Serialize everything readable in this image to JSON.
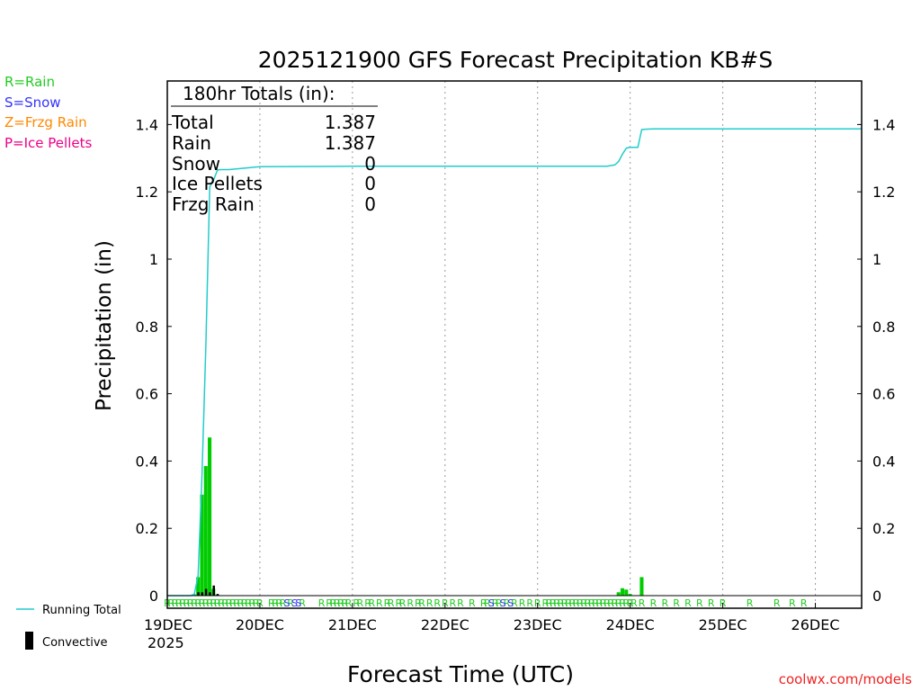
{
  "chart_data": {
    "type": "bar",
    "title": "2025121900 GFS Forecast Precipitation KB#S",
    "xlabel": "Forecast Time (UTC)",
    "ylabel": "Precipitation (in)",
    "ylim": [
      0,
      1.5
    ],
    "xlim_hours": [
      0,
      180
    ],
    "y_ticks": [
      "0",
      "0.2",
      "0.4",
      "0.6",
      "0.8",
      "1",
      "1.2",
      "1.4"
    ],
    "x_ticks": [
      {
        "hour": 0,
        "label": "19DEC",
        "sublabel": "2025"
      },
      {
        "hour": 24,
        "label": "20DEC"
      },
      {
        "hour": 48,
        "label": "21DEC"
      },
      {
        "hour": 72,
        "label": "22DEC"
      },
      {
        "hour": 96,
        "label": "23DEC"
      },
      {
        "hour": 120,
        "label": "24DEC"
      },
      {
        "hour": 144,
        "label": "25DEC"
      },
      {
        "hour": 168,
        "label": "26DEC"
      }
    ],
    "totals_box": {
      "header": "180hr Totals (in):",
      "rows": [
        {
          "label": "Total",
          "value": "1.387"
        },
        {
          "label": "Rain",
          "value": "1.387"
        },
        {
          "label": "Snow",
          "value": "0"
        },
        {
          "label": "Ice Pellets",
          "value": "0"
        },
        {
          "label": "Frzg Rain",
          "value": "0"
        }
      ]
    },
    "type_legend": [
      {
        "text": "R=Rain",
        "color": "#22cc22"
      },
      {
        "text": "S=Snow",
        "color": "#3333ff"
      },
      {
        "text": "Z=Frzg Rain",
        "color": "#ff8800"
      },
      {
        "text": "P=Ice Pellets",
        "color": "#ee0088"
      }
    ],
    "bottom_legend": {
      "running_total_label": "Running Total",
      "convective_label": "Convective"
    },
    "credit": "coolwx.com/models",
    "series": [
      {
        "name": "Precipitation",
        "hours": [
          7,
          8,
          9,
          10,
          11,
          12,
          13,
          14,
          117,
          118,
          119,
          120,
          123
        ],
        "values": [
          0.004,
          0.055,
          0.3,
          0.385,
          0.47,
          0.02,
          0.003,
          0.001,
          0.01,
          0.022,
          0.018,
          0.005,
          0.055
        ]
      },
      {
        "name": "Convective",
        "hours": [
          8,
          9,
          10,
          11,
          12,
          13
        ],
        "values": [
          0.01,
          0.01,
          0.02,
          0.01,
          0.03,
          0.005
        ]
      },
      {
        "name": "Running Total",
        "hours": [
          0,
          6,
          7,
          8,
          9,
          10,
          11,
          12,
          13,
          14,
          16,
          24,
          48,
          72,
          96,
          114,
          116,
          117,
          118,
          119,
          120,
          122,
          123,
          124,
          126,
          180
        ],
        "values": [
          0,
          0,
          0.004,
          0.06,
          0.36,
          0.745,
          1.215,
          1.235,
          1.265,
          1.266,
          1.266,
          1.275,
          1.276,
          1.276,
          1.276,
          1.276,
          1.28,
          1.29,
          1.312,
          1.33,
          1.332,
          1.332,
          1.385,
          1.386,
          1.387,
          1.387
        ]
      }
    ],
    "ptype_markers": {
      "rain_hours": [
        0,
        1,
        2,
        3,
        4,
        5,
        6,
        7,
        8,
        9,
        10,
        11,
        12,
        13,
        14,
        15,
        16,
        17,
        18,
        19,
        20,
        21,
        22,
        23,
        24,
        27,
        28,
        29,
        30,
        32,
        35,
        40,
        42,
        43,
        44,
        45,
        46,
        47,
        49,
        50,
        52,
        53,
        55,
        57,
        58,
        60,
        61,
        63,
        65,
        66,
        68,
        70,
        72,
        74,
        76,
        79,
        82,
        83,
        85,
        86,
        88,
        90,
        92,
        94,
        96,
        98,
        99,
        100,
        101,
        102,
        103,
        104,
        105,
        106,
        107,
        108,
        109,
        110,
        111,
        112,
        113,
        114,
        115,
        116,
        117,
        118,
        119,
        120,
        121,
        123,
        126,
        129,
        132,
        135,
        138,
        141,
        144,
        151,
        158,
        162,
        165
      ],
      "snow_hours": [
        31,
        33,
        34,
        84,
        87,
        89
      ]
    }
  }
}
